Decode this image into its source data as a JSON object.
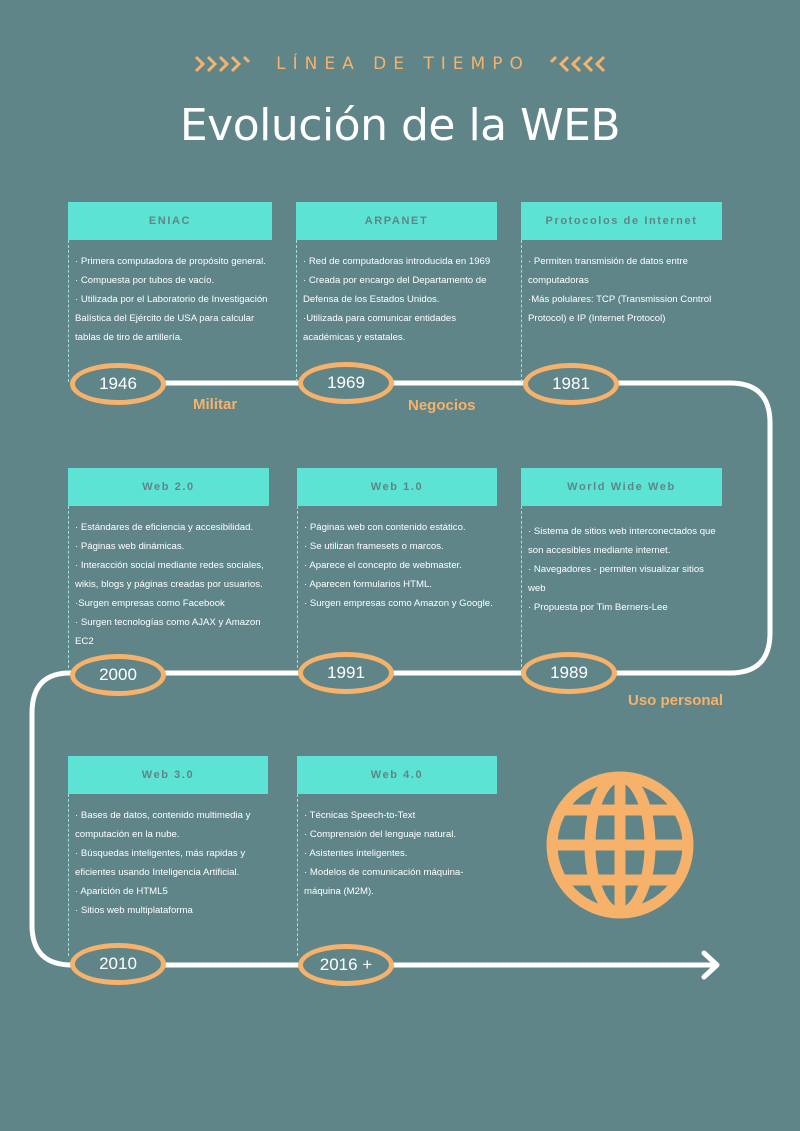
{
  "header": {
    "kicker": "LÍNEA DE TIEMPO",
    "title": "Evolución de la WEB"
  },
  "colors": {
    "background": "#5f8589",
    "accent": "#f6b26b",
    "card_header": "#5de3d3",
    "line": "#ffffff"
  },
  "eras": {
    "military": "Militar",
    "business": "Negocios",
    "personal": "Uso personal"
  },
  "events": [
    {
      "title": "ENIAC",
      "year": "1946",
      "items": [
        "· Primera computadora de propósito general.",
        "· Compuesta por tubos de vacío.",
        "· Utilizada por el Laboratorio de Investigación Balística del Ejército de USA para calcular tablas de tiro de artillería."
      ]
    },
    {
      "title": "ARPANET",
      "year": "1969",
      "items": [
        "· Red de computadoras introducida en 1969",
        "· Creada por encargo del Departamento de Defensa de los Estados Unidos.",
        "·Utilizada para  comunicar entidades académicas y estatales."
      ]
    },
    {
      "title": "Protocolos de Internet",
      "year": "1981",
      "items": [
        "· Permiten transmisión de datos entre computadoras",
        "·Más polulares: TCP (Transmission Control Protocol) e IP (Internet Protocol)"
      ]
    },
    {
      "title": "World Wide Web",
      "year": "1989",
      "items": [
        "· Sistema de sitios web interconectados que son accesibles mediante internet.",
        "· Navegadores - permiten visualizar sitios web",
        "· Propuesta por Tim Berners-Lee"
      ]
    },
    {
      "title": "Web 1.0",
      "year": "1991",
      "items": [
        "· Páginas web con contenido estático.",
        "· Se utilizan framesets o marcos.",
        "· Aparece el concepto de webmaster.",
        "· Aparecen formularios HTML.",
        "· Surgen empresas como Amazon y Google."
      ]
    },
    {
      "title": "Web 2.0",
      "year": "2000",
      "items": [
        "· Estándares  de eficiencia y accesibilidad.",
        "· Páginas web dinámicas.",
        "· Interacción social  mediante redes sociales, wikis, blogs y páginas creadas por usuarios.",
        "·Surgen empresas como Facebook",
        "· Surgen tecnologías como AJAX y Amazon EC2"
      ]
    },
    {
      "title": "Web 3.0",
      "year": "2010",
      "items": [
        "· Bases de datos, contenido multimedia y computación en la nube.",
        "· Búsquedas inteligentes, más rapidas y eficientes usando Inteligencia Artificial.",
        "· Aparición de HTML5",
        "· Sitios web multiplataforma"
      ]
    },
    {
      "title": "Web 4.0",
      "year": "2016 +",
      "items": [
        "· Técnicas Speech-to-Text",
        "· Comprensión del lenguaje natural.",
        "· Asistentes inteligentes.",
        "· Modelos de comunicación máquina-máquina (M2M)."
      ]
    }
  ]
}
